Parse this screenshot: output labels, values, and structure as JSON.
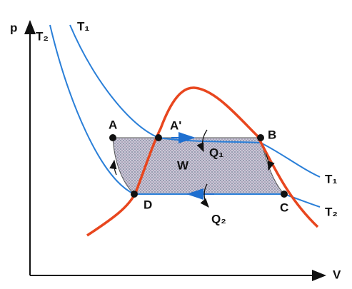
{
  "axes": {
    "y_label": "p",
    "x_label": "V"
  },
  "isotherms": [
    {
      "label_top": "T₁",
      "label_right": "T₁"
    },
    {
      "label_top": "T₂",
      "label_right": "T₂"
    }
  ],
  "points": [
    "A",
    "A'",
    "B",
    "C",
    "D"
  ],
  "region_label": "W",
  "heat": [
    "Q₁",
    "Q₂"
  ]
}
